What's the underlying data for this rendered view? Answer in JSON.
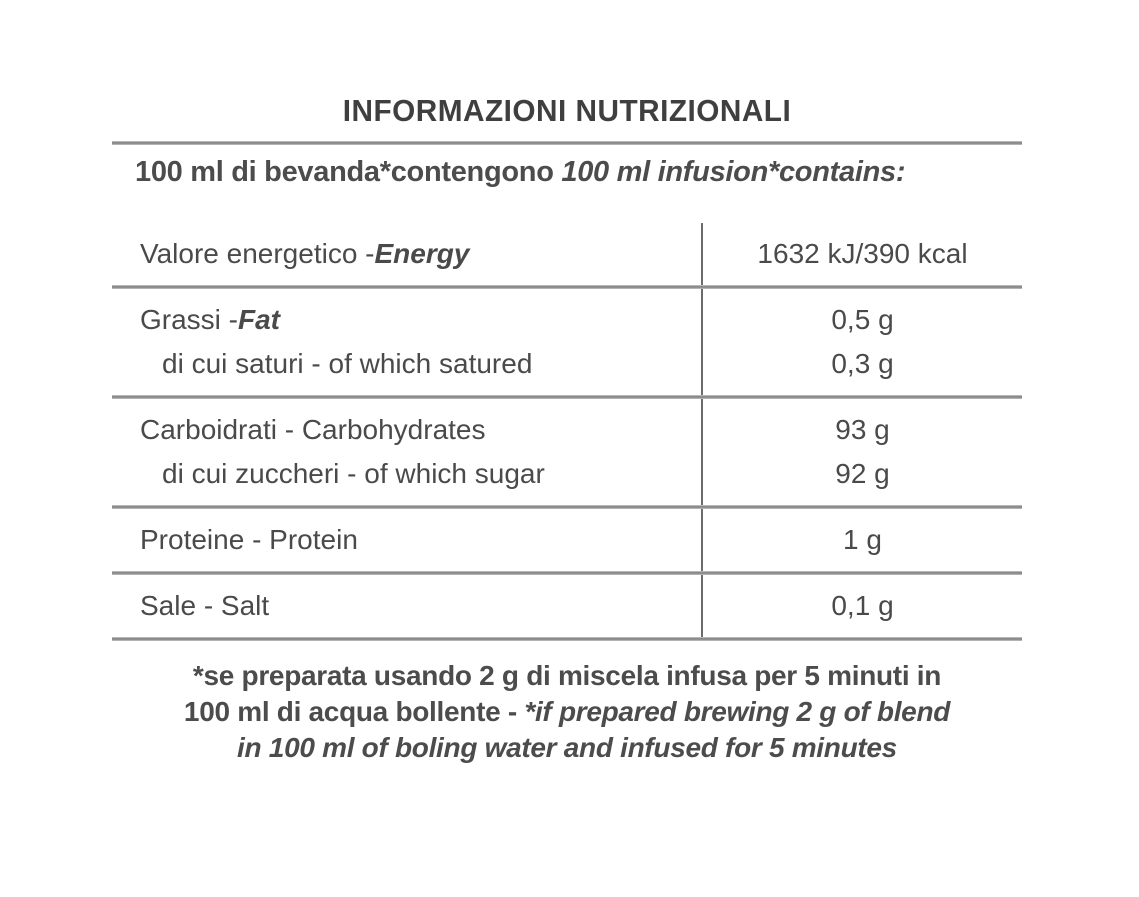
{
  "title": "INFORMAZIONI NUTRIZIONALI",
  "subtitle": {
    "normal": "100 ml di bevanda*contengono ",
    "italic": "100 ml infusion*contains:"
  },
  "table": {
    "rows": [
      {
        "name": "energy",
        "lines": [
          {
            "label": "Valore energetico - ",
            "label_italic": "Energy",
            "value": "1632 kJ/390 kcal"
          }
        ]
      },
      {
        "name": "fat",
        "lines": [
          {
            "label": "Grassi - ",
            "label_italic": "Fat",
            "value": "0,5 g"
          },
          {
            "label": "di cui saturi - of which satured",
            "value": "0,3 g"
          }
        ]
      },
      {
        "name": "carbohydrates",
        "lines": [
          {
            "label": "Carboidrati - Carbohydrates",
            "value": "93 g"
          },
          {
            "label": "di cui zuccheri - of which sugar",
            "value": "92 g"
          }
        ]
      },
      {
        "name": "protein",
        "lines": [
          {
            "label": "Proteine - Protein",
            "value": "1 g"
          }
        ]
      },
      {
        "name": "salt",
        "lines": [
          {
            "label": "Sale - Salt",
            "value": "0,1 g"
          }
        ]
      }
    ]
  },
  "footnote": {
    "line1": "*se preparata usando 2 g di miscela infusa per 5 minuti in",
    "line2_normal": "100 ml di acqua bollente - ",
    "line2_italic": "*if prepared brewing 2 g of blend",
    "line3_italic": "in 100 ml of boling water and infused for 5 minutes"
  },
  "colors": {
    "text": "#4a4a4a",
    "rule_dark": "#868686",
    "rule_light": "#d2d2d2",
    "divider": "#6b6b6b",
    "background": "#ffffff"
  }
}
